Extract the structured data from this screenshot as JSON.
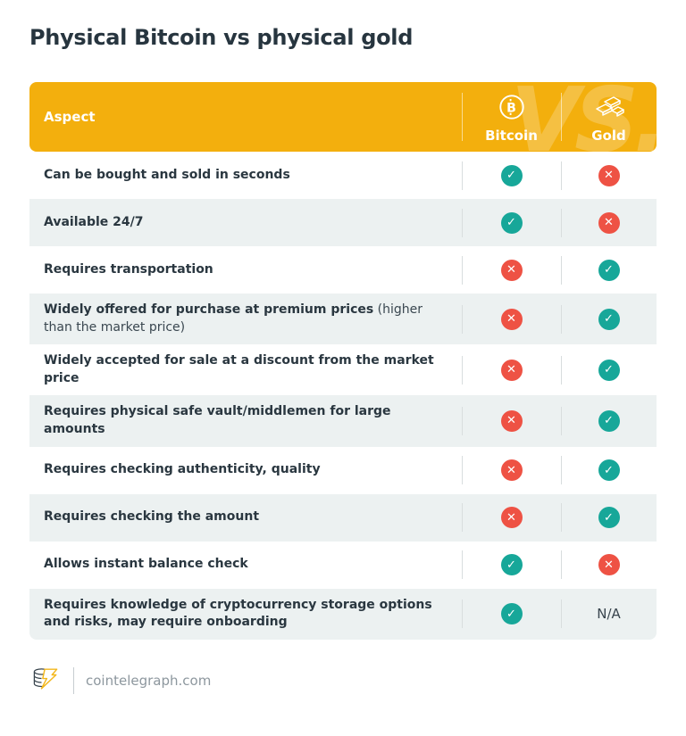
{
  "page": {
    "title": "Physical Bitcoin vs physical gold"
  },
  "table": {
    "header": {
      "aspect_label": "Aspect",
      "bitcoin_label": "Bitcoin",
      "gold_label": "Gold",
      "vs_watermark": "VS."
    },
    "na_label": "N/A",
    "icons": {
      "check_icon_glyph": "✓",
      "cross_icon_glyph": "✕",
      "bitcoin_icon": "bitcoin-coin-icon",
      "gold_icon": "gold-bars-icon"
    },
    "rows": [
      {
        "aspect": "Can be bought and sold in seconds",
        "note": "",
        "bitcoin": "check",
        "gold": "cross"
      },
      {
        "aspect": "Available 24/7",
        "note": "",
        "bitcoin": "check",
        "gold": "cross"
      },
      {
        "aspect": "Requires transportation",
        "note": "",
        "bitcoin": "cross",
        "gold": "check"
      },
      {
        "aspect": "Widely offered for purchase at premium prices",
        "note": "(higher than the market price)",
        "bitcoin": "cross",
        "gold": "check"
      },
      {
        "aspect": "Widely accepted for sale at a discount from the market price",
        "note": "",
        "bitcoin": "cross",
        "gold": "check"
      },
      {
        "aspect": "Requires physical safe vault/middlemen for large amounts",
        "note": "",
        "bitcoin": "cross",
        "gold": "check"
      },
      {
        "aspect": "Requires checking authenticity, quality",
        "note": "",
        "bitcoin": "cross",
        "gold": "check"
      },
      {
        "aspect": "Requires checking the amount",
        "note": "",
        "bitcoin": "cross",
        "gold": "check"
      },
      {
        "aspect": "Allows instant balance check",
        "note": "",
        "bitcoin": "check",
        "gold": "cross"
      },
      {
        "aspect": "Requires knowledge of cryptocurrency storage options and risks, may require onboarding",
        "note": "",
        "bitcoin": "check",
        "gold": "na"
      }
    ]
  },
  "footer": {
    "site": "cointelegraph.com",
    "logo_icon": "cointelegraph-coin-stack-lightning-icon"
  },
  "colors": {
    "header_yellow": "#F3AF0D",
    "row_shaded": "#ECF1F1",
    "check_teal": "#17A799",
    "cross_red": "#EE5244",
    "text_dark": "#2A3740",
    "footer_gray": "#8D979E",
    "divider_gray": "#D8DDDE"
  },
  "chart_data": {
    "type": "table",
    "title": "Physical Bitcoin vs physical gold",
    "columns": [
      "Aspect",
      "Bitcoin",
      "Gold"
    ],
    "rows": [
      [
        "Can be bought and sold in seconds",
        "yes",
        "no"
      ],
      [
        "Available 24/7",
        "yes",
        "no"
      ],
      [
        "Requires transportation",
        "no",
        "yes"
      ],
      [
        "Widely offered for purchase at premium prices (higher than the market price)",
        "no",
        "yes"
      ],
      [
        "Widely accepted for sale at a discount from the market price",
        "no",
        "yes"
      ],
      [
        "Requires physical safe vault/middlemen for large amounts",
        "no",
        "yes"
      ],
      [
        "Requires checking authenticity, quality",
        "no",
        "yes"
      ],
      [
        "Requires checking the amount",
        "no",
        "yes"
      ],
      [
        "Allows instant balance check",
        "yes",
        "no"
      ],
      [
        "Requires knowledge of cryptocurrency storage options and risks, may require onboarding",
        "yes",
        "N/A"
      ]
    ],
    "legend": {
      "yes": "teal check badge",
      "no": "red cross badge",
      "N/A": "plain text"
    }
  }
}
